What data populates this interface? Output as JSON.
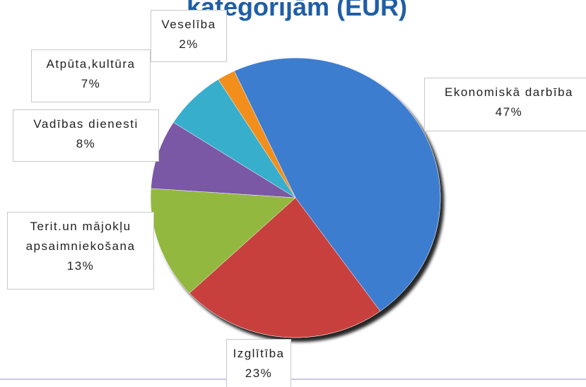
{
  "chart_data": {
    "type": "pie",
    "title": "kategorijām (EUR)",
    "categories": [
      "Ekonomiskā darbība",
      "Izglītība",
      "Terit.un mājokļu apsaimniekošana",
      "Vadības dienesti",
      "Atpūta,kultūra",
      "Veselība"
    ],
    "values": [
      47,
      23,
      13,
      8,
      7,
      2
    ],
    "value_labels": [
      "47%",
      "23%",
      "13%",
      "8%",
      "7%",
      "2%"
    ],
    "colors": [
      "#3d7dcf",
      "#c8403c",
      "#93b840",
      "#7a58a5",
      "#37aecd",
      "#f28f1e"
    ]
  }
}
